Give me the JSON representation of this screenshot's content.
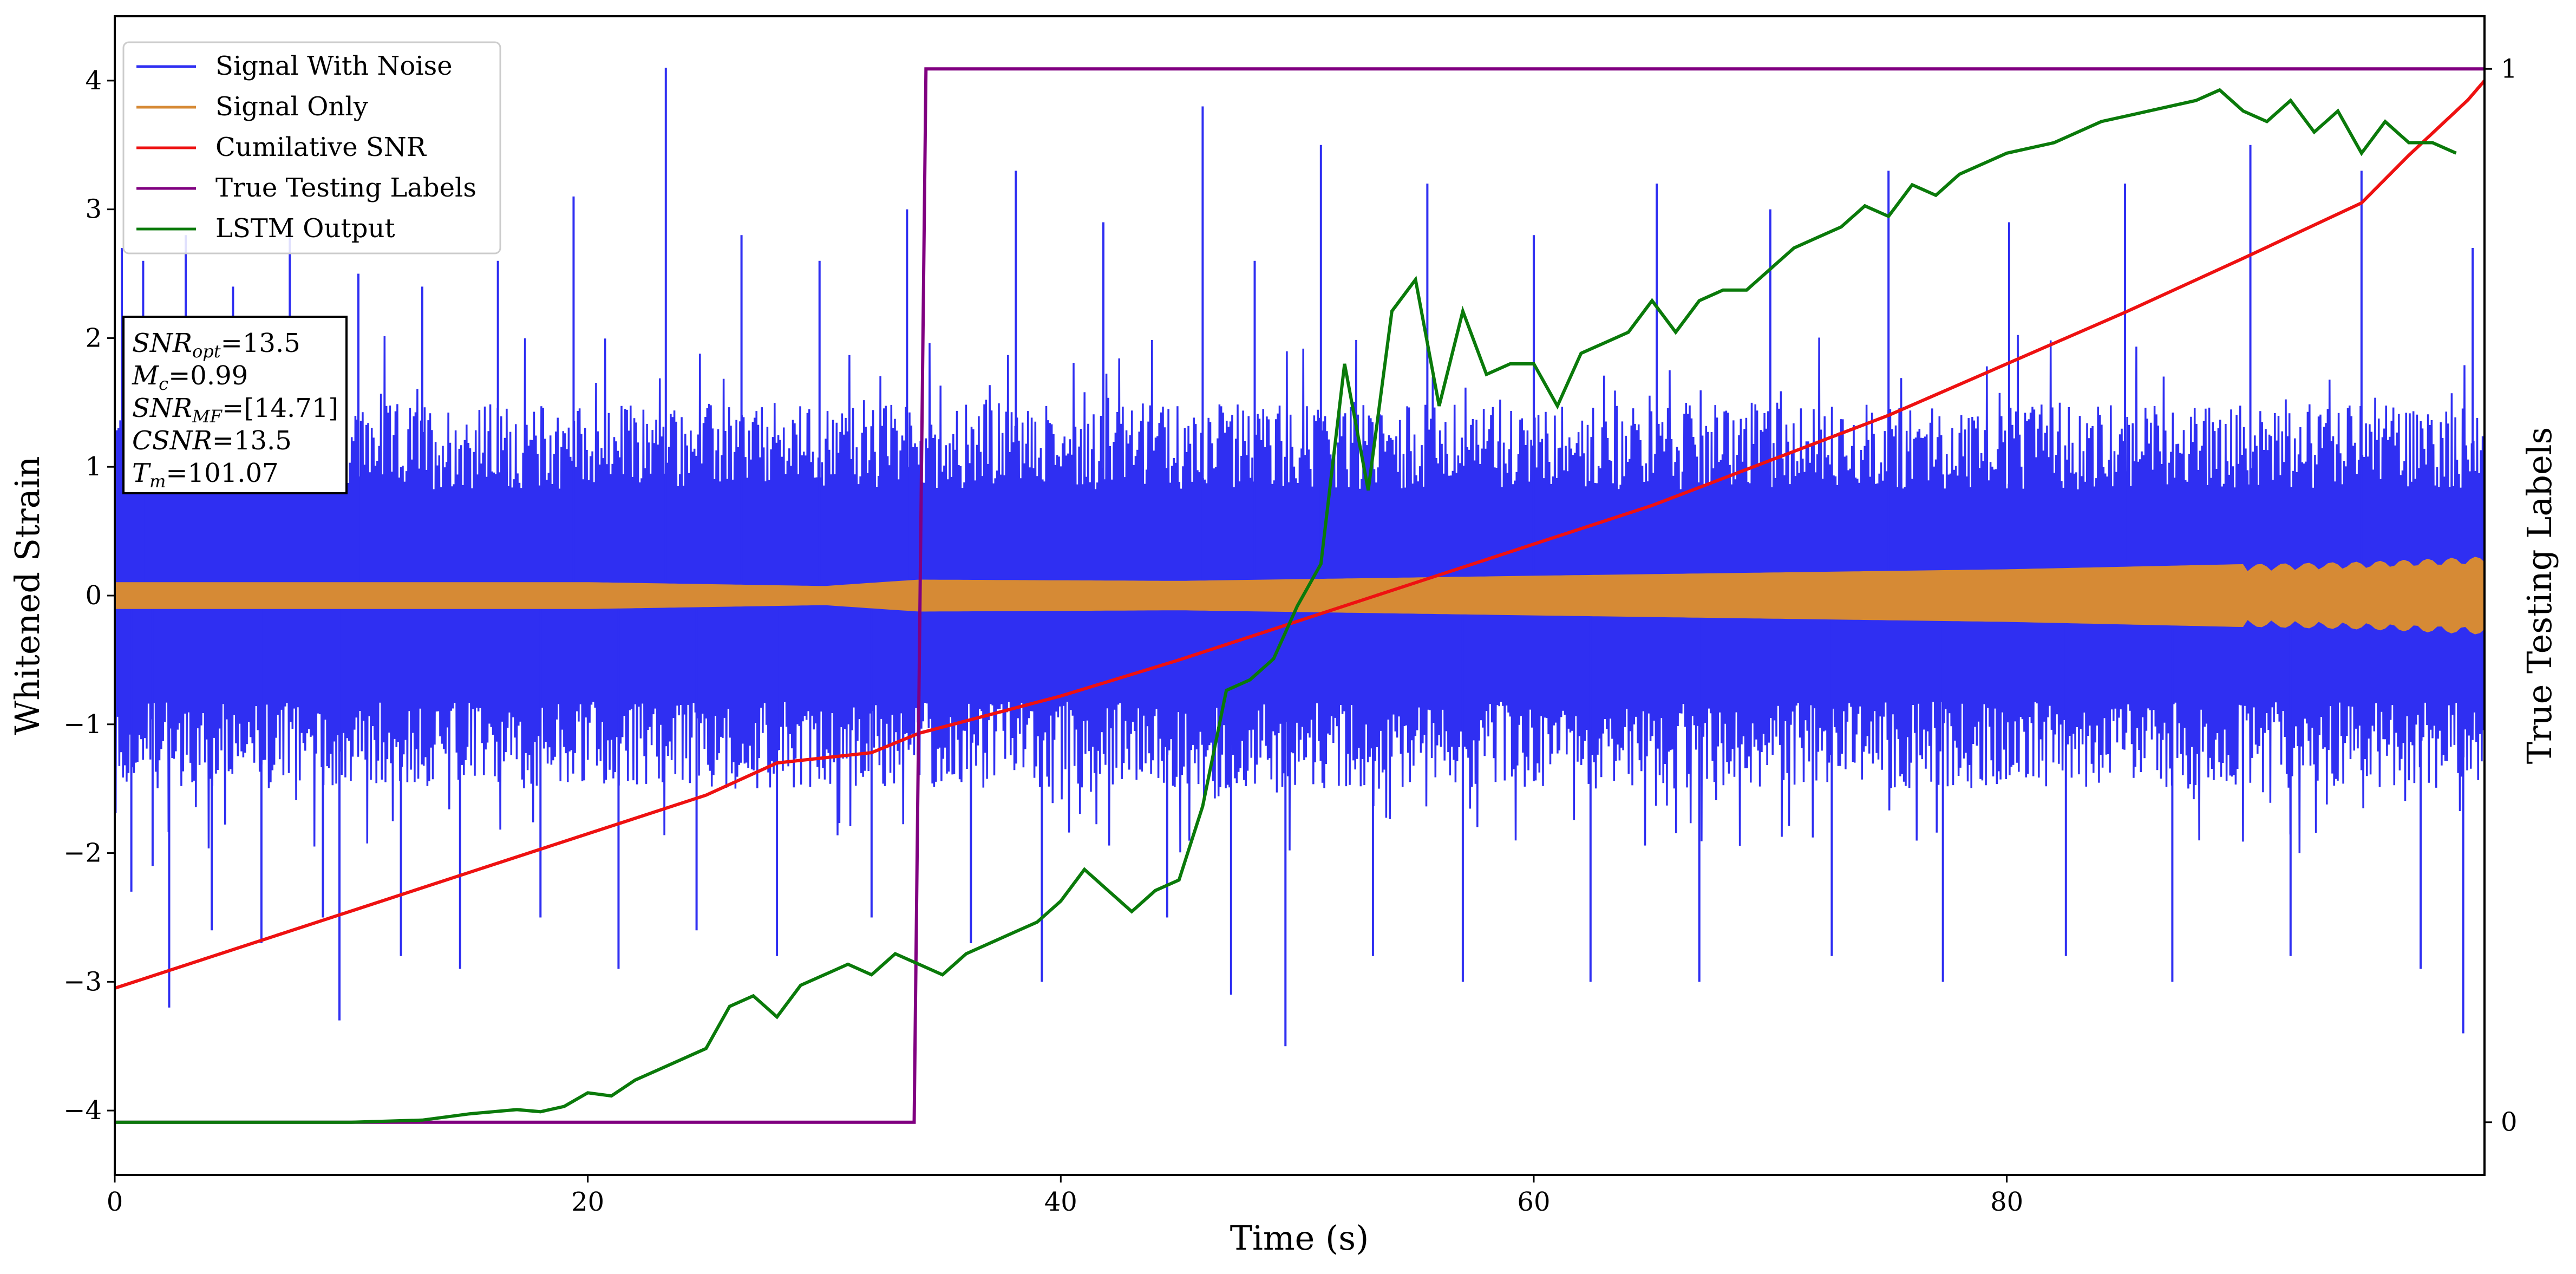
{
  "chart_data": {
    "type": "line",
    "xlabel": "Time (s)",
    "ylabel": "Whitened Strain",
    "y2label": "True Testing Labels",
    "xlim": [
      0,
      100.2
    ],
    "ylim": [
      -4.5,
      4.5
    ],
    "y2lim": [
      -0.05,
      1.05
    ],
    "xticks": [
      "0",
      "20",
      "40",
      "60",
      "80"
    ],
    "yticks": [
      "−4",
      "−3",
      "−2",
      "−1",
      "0",
      "1",
      "2",
      "3",
      "4"
    ],
    "y2ticks": [
      "0",
      "1"
    ],
    "grid": false,
    "legend_position": "top-left",
    "colors": {
      "noise": "#2f2ff2",
      "signal": "#d68a35",
      "csnr": "#ee1111",
      "labels": "#800080",
      "lstm": "#0a7a0a"
    },
    "series": [
      {
        "name": "Signal With Noise",
        "axis": "left",
        "note": "dense oscillating noise, mostly within ±1.5, spikes to about ±4",
        "envelope_outer": 1.5,
        "spikes": [
          [
            0.3,
            2.7
          ],
          [
            0.7,
            -2.3
          ],
          [
            1.2,
            2.6
          ],
          [
            1.6,
            -2.1
          ],
          [
            2.3,
            -3.2
          ],
          [
            3.0,
            2.8
          ],
          [
            4.1,
            -2.6
          ],
          [
            5.0,
            2.4
          ],
          [
            6.2,
            -2.7
          ],
          [
            7.4,
            2.9
          ],
          [
            8.8,
            -2.5
          ],
          [
            9.5,
            -3.3
          ],
          [
            10.3,
            2.5
          ],
          [
            12.1,
            -2.8
          ],
          [
            13.0,
            2.4
          ],
          [
            14.6,
            -2.9
          ],
          [
            16.2,
            2.6
          ],
          [
            18.0,
            -2.5
          ],
          [
            19.4,
            3.1
          ],
          [
            21.3,
            -2.9
          ],
          [
            23.3,
            4.1
          ],
          [
            24.6,
            -2.6
          ],
          [
            26.5,
            2.8
          ],
          [
            28.0,
            -2.8
          ],
          [
            29.8,
            2.6
          ],
          [
            32.0,
            -2.5
          ],
          [
            33.5,
            3.0
          ],
          [
            36.2,
            -2.7
          ],
          [
            38.1,
            3.3
          ],
          [
            39.2,
            -3.0
          ],
          [
            41.8,
            2.9
          ],
          [
            44.5,
            -2.5
          ],
          [
            46.0,
            3.8
          ],
          [
            47.2,
            -3.1
          ],
          [
            48.2,
            2.6
          ],
          [
            49.5,
            -3.5
          ],
          [
            51.0,
            3.5
          ],
          [
            53.2,
            -2.8
          ],
          [
            55.5,
            3.2
          ],
          [
            57.0,
            -3.0
          ],
          [
            60.0,
            2.8
          ],
          [
            62.4,
            -3.0
          ],
          [
            65.2,
            3.2
          ],
          [
            67.0,
            -3.0
          ],
          [
            70.0,
            3.0
          ],
          [
            72.6,
            -2.8
          ],
          [
            75.0,
            3.3
          ],
          [
            77.3,
            -3.0
          ],
          [
            80.1,
            2.9
          ],
          [
            82.5,
            -2.8
          ],
          [
            85.0,
            3.2
          ],
          [
            87.0,
            -3.0
          ],
          [
            90.3,
            3.5
          ],
          [
            92.0,
            -2.8
          ],
          [
            95.0,
            3.3
          ],
          [
            97.5,
            -2.9
          ],
          [
            99.3,
            -3.4
          ],
          [
            99.7,
            2.7
          ]
        ]
      },
      {
        "name": "Signal Only",
        "axis": "left",
        "note": "narrow chirp band around zero, amplitude growing with time",
        "envelope": [
          [
            0,
            0.1
          ],
          [
            20,
            0.1
          ],
          [
            30,
            0.07
          ],
          [
            34,
            0.12
          ],
          [
            45,
            0.11
          ],
          [
            60,
            0.15
          ],
          [
            80,
            0.2
          ],
          [
            95,
            0.26
          ],
          [
            100.2,
            0.3
          ]
        ]
      },
      {
        "name": "Cumilative SNR",
        "axis": "left",
        "x": [
          0,
          5,
          10,
          15,
          20,
          25,
          28,
          32,
          34,
          40,
          45,
          50,
          55,
          60,
          65,
          70,
          75,
          80,
          85,
          90,
          95,
          97,
          99.5,
          100.2
        ],
        "values": [
          -3.05,
          -2.75,
          -2.45,
          -2.15,
          -1.85,
          -1.55,
          -1.3,
          -1.22,
          -1.07,
          -0.78,
          -0.5,
          -0.2,
          0.1,
          0.4,
          0.7,
          1.05,
          1.4,
          1.8,
          2.2,
          2.62,
          3.05,
          3.42,
          3.85,
          4.0
        ]
      },
      {
        "name": "True Testing Labels",
        "axis": "right",
        "x": [
          0,
          33.8,
          34.3,
          100.2
        ],
        "values": [
          0,
          0,
          1,
          1
        ]
      },
      {
        "name": "LSTM Output",
        "axis": "right",
        "x": [
          0,
          10,
          13,
          15,
          17,
          18,
          19,
          20,
          21,
          22,
          23,
          24,
          25,
          26,
          27,
          28,
          29,
          30,
          31,
          32,
          33,
          34,
          35,
          36,
          37,
          38,
          39,
          40,
          41,
          42,
          43,
          44,
          45,
          46,
          47,
          48,
          49,
          50,
          51,
          52,
          53,
          54,
          55,
          56,
          57,
          58,
          59,
          60,
          61,
          62,
          63,
          64,
          65,
          66,
          67,
          68,
          69,
          70,
          71,
          72,
          73,
          74,
          75,
          76,
          77,
          78,
          79,
          80,
          82,
          84,
          86,
          88,
          89,
          90,
          91,
          92,
          93,
          94,
          95,
          96,
          97,
          98,
          99
        ],
        "values": [
          0,
          0,
          0.002,
          0.008,
          0.012,
          0.01,
          0.015,
          0.028,
          0.025,
          0.04,
          0.05,
          0.06,
          0.07,
          0.11,
          0.12,
          0.1,
          0.13,
          0.14,
          0.15,
          0.14,
          0.16,
          0.15,
          0.14,
          0.16,
          0.17,
          0.18,
          0.19,
          0.21,
          0.24,
          0.22,
          0.2,
          0.22,
          0.23,
          0.3,
          0.41,
          0.42,
          0.44,
          0.49,
          0.53,
          0.72,
          0.6,
          0.77,
          0.8,
          0.68,
          0.77,
          0.71,
          0.72,
          0.72,
          0.68,
          0.73,
          0.74,
          0.75,
          0.78,
          0.75,
          0.78,
          0.79,
          0.79,
          0.81,
          0.83,
          0.84,
          0.85,
          0.87,
          0.86,
          0.89,
          0.88,
          0.9,
          0.91,
          0.92,
          0.93,
          0.95,
          0.96,
          0.97,
          0.98,
          0.96,
          0.95,
          0.97,
          0.94,
          0.96,
          0.92,
          0.95,
          0.93,
          0.93,
          0.92
        ]
      }
    ],
    "annotation": [
      {
        "label": "SNR",
        "sub": "opt",
        "value": "=13.5"
      },
      {
        "label": "M",
        "sub": "c",
        "value": "=0.99"
      },
      {
        "label": "SNR",
        "sub": "MF",
        "value": "=[14.71]"
      },
      {
        "label": "CSNR",
        "sub": "",
        "value": "=13.5"
      },
      {
        "label": "T",
        "sub": "m",
        "value": "=101.07"
      }
    ]
  }
}
